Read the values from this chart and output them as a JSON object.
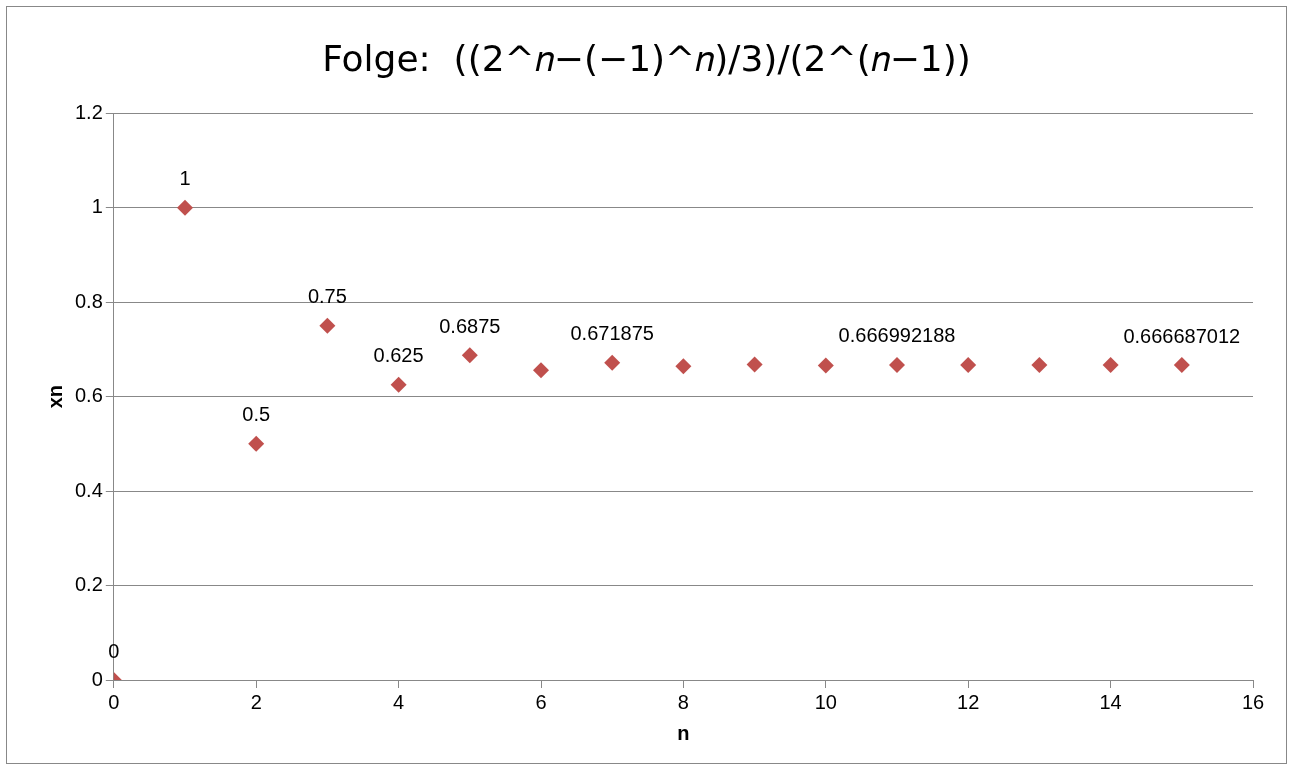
{
  "chart_data": {
    "type": "scatter",
    "title": "Folge:  ((2^𝑛−(−1)^𝑛)/3)/(2^(𝑛−1))",
    "xlabel": "n",
    "ylabel": "xn",
    "x": [
      0,
      1,
      2,
      3,
      4,
      5,
      6,
      7,
      8,
      9,
      10,
      11,
      12,
      13,
      14,
      15
    ],
    "series": [
      {
        "color": "#c0504d",
        "values": [
          0,
          1,
          0.5,
          0.75,
          0.625,
          0.6875,
          0.656,
          0.671875,
          0.664,
          0.668,
          0.666,
          0.666992188,
          0.667,
          0.667,
          0.667,
          0.666687012
        ],
        "value_labels": [
          "0",
          "1",
          "0.5",
          "0.75",
          "0.625",
          "0.6875",
          null,
          "0.671875",
          null,
          null,
          null,
          "0.666992188",
          null,
          null,
          null,
          "0.666687012"
        ]
      }
    ],
    "xlim": [
      0,
      16
    ],
    "xticks": [
      0,
      2,
      4,
      6,
      8,
      10,
      12,
      14,
      16
    ],
    "ylim": [
      0,
      1.2
    ],
    "yticks": [
      0,
      0.2,
      0.4,
      0.6,
      0.8,
      1,
      1.2
    ],
    "grid": "y",
    "legend": false,
    "marker": "diamond"
  }
}
